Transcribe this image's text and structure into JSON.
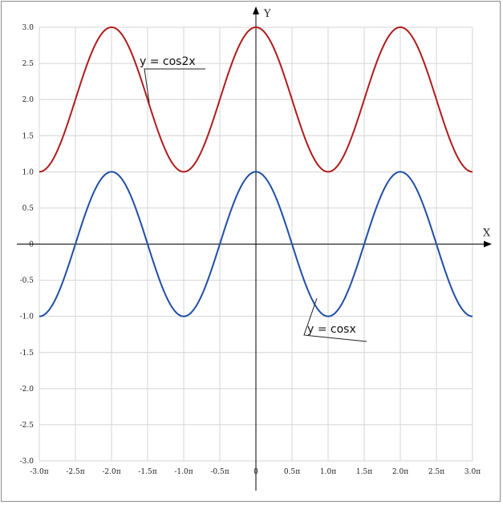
{
  "chart_data": {
    "type": "line",
    "title": "",
    "xlabel": "X",
    "ylabel": "Y",
    "xlim": [
      -3.0,
      3.0
    ],
    "ylim": [
      -3.0,
      3.0
    ],
    "x_unit": "π",
    "grid": true,
    "x_ticks": [
      -3.0,
      -2.5,
      -2.0,
      -1.5,
      -1.0,
      -0.5,
      0,
      0.5,
      1.0,
      1.5,
      2.0,
      2.5,
      3.0
    ],
    "x_tick_labels": [
      "-3.0π",
      "-2.5π",
      "-2.0π",
      "-1.5π",
      "-1.0π",
      "-0.5π",
      "0",
      "0.5π",
      "1.0π",
      "1.5π",
      "2.0π",
      "2.5π",
      "3.0π"
    ],
    "y_ticks": [
      3.0,
      2.5,
      2.0,
      1.5,
      1.0,
      0.5,
      0,
      -0.5,
      -1.0,
      -1.5,
      -2.0,
      -2.5,
      -3.0
    ],
    "y_tick_labels": [
      "3.0",
      "2.5",
      "2.0",
      "1.5",
      "1.0",
      "0.5",
      "0",
      "-0.5",
      "-1.0",
      "-1.5",
      "-2.0",
      "-2.5",
      "-3.0"
    ],
    "series": [
      {
        "name": "y = cos2x",
        "color": "#b01c1c",
        "x": [
          -3.0,
          -2.5,
          -2.0,
          -1.5,
          -1.0,
          -0.5,
          0,
          0.5,
          1.0,
          1.5,
          2.0,
          2.5,
          3.0
        ],
        "y": [
          1.0,
          2.0,
          3.0,
          2.0,
          1.0,
          2.0,
          3.0,
          2.0,
          1.0,
          2.0,
          3.0,
          2.0,
          1.0
        ]
      },
      {
        "name": "y = cosx",
        "color": "#1f4fa3",
        "x": [
          -3.0,
          -2.5,
          -2.0,
          -1.5,
          -1.0,
          -0.5,
          0,
          0.5,
          1.0,
          1.5,
          2.0,
          2.5,
          3.0
        ],
        "y": [
          -1.0,
          0.0,
          1.0,
          0.0,
          -1.0,
          0.0,
          1.0,
          0.0,
          -1.0,
          0.0,
          1.0,
          0.0,
          -1.0
        ]
      }
    ],
    "annotations": [
      "y = cos2x",
      "y = cosx"
    ]
  }
}
